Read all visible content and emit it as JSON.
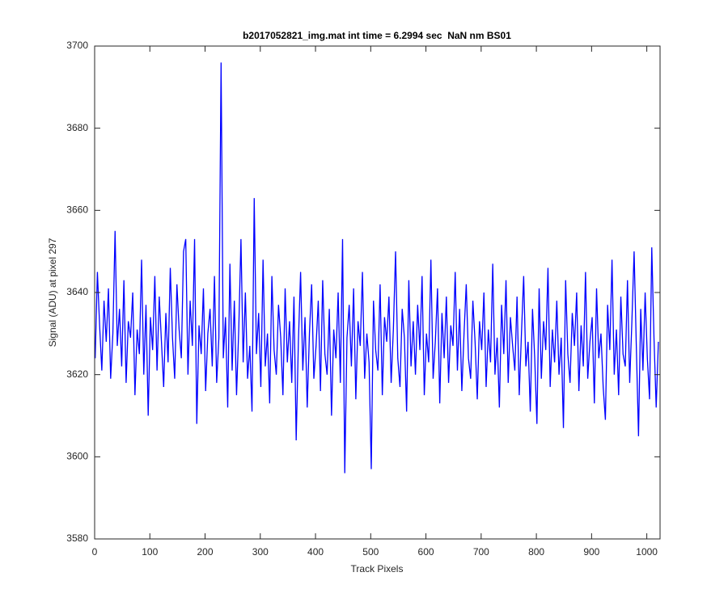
{
  "chart_data": {
    "type": "line",
    "title": "b2017052821_img.mat int time = 6.2994 sec  NaN nm BS01",
    "x_label": "Track Pixels",
    "y_label": "Signal (ADU) at pixel 297",
    "xlim": [
      0,
      1024
    ],
    "xticks": [
      0,
      100,
      200,
      300,
      400,
      500,
      600,
      700,
      800,
      900,
      1000
    ],
    "ylim": [
      3580,
      3700
    ],
    "yticks": [
      3580,
      3600,
      3620,
      3640,
      3660,
      3680,
      3700
    ],
    "x": [
      1,
      5,
      9,
      13,
      17,
      21,
      25,
      29,
      33,
      37,
      41,
      45,
      49,
      53,
      57,
      61,
      65,
      69,
      73,
      77,
      81,
      85,
      89,
      93,
      97,
      101,
      105,
      109,
      113,
      117,
      121,
      125,
      129,
      133,
      137,
      141,
      145,
      149,
      153,
      157,
      161,
      165,
      169,
      173,
      177,
      181,
      185,
      189,
      193,
      197,
      201,
      205,
      209,
      213,
      217,
      221,
      225,
      229,
      233,
      237,
      241,
      245,
      249,
      253,
      257,
      261,
      265,
      269,
      273,
      277,
      281,
      285,
      289,
      293,
      297,
      301,
      305,
      309,
      313,
      317,
      321,
      325,
      329,
      333,
      337,
      341,
      345,
      349,
      353,
      357,
      361,
      365,
      369,
      373,
      377,
      381,
      385,
      389,
      393,
      397,
      401,
      405,
      409,
      413,
      417,
      421,
      425,
      429,
      433,
      437,
      441,
      445,
      449,
      453,
      457,
      461,
      465,
      469,
      473,
      477,
      481,
      485,
      489,
      493,
      497,
      501,
      505,
      509,
      513,
      517,
      521,
      525,
      529,
      533,
      537,
      541,
      545,
      549,
      553,
      557,
      561,
      565,
      569,
      573,
      577,
      581,
      585,
      589,
      593,
      597,
      601,
      605,
      609,
      613,
      617,
      621,
      625,
      629,
      633,
      637,
      641,
      645,
      649,
      653,
      657,
      661,
      665,
      669,
      673,
      677,
      681,
      685,
      689,
      693,
      697,
      701,
      705,
      709,
      713,
      717,
      721,
      725,
      729,
      733,
      737,
      741,
      745,
      749,
      753,
      757,
      761,
      765,
      769,
      773,
      777,
      781,
      785,
      789,
      793,
      797,
      801,
      805,
      809,
      813,
      817,
      821,
      825,
      829,
      833,
      837,
      841,
      845,
      849,
      853,
      857,
      861,
      865,
      869,
      873,
      877,
      881,
      885,
      889,
      893,
      897,
      901,
      905,
      909,
      913,
      917,
      921,
      925,
      929,
      933,
      937,
      941,
      945,
      949,
      953,
      957,
      961,
      965,
      969,
      973,
      977,
      981,
      985,
      989,
      993,
      997,
      1001,
      1005,
      1009,
      1013,
      1017,
      1021
    ],
    "series": [
      {
        "color": "#0000ff",
        "values": [
          3624,
          3645,
          3632,
          3621,
          3638,
          3628,
          3641,
          3619,
          3630,
          3655,
          3627,
          3636,
          3622,
          3643,
          3618,
          3633,
          3629,
          3640,
          3615,
          3631,
          3625,
          3648,
          3620,
          3637,
          3610,
          3634,
          3626,
          3644,
          3621,
          3639,
          3628,
          3617,
          3635,
          3623,
          3646,
          3629,
          3619,
          3642,
          3631,
          3624,
          3650,
          3653,
          3620,
          3638,
          3627,
          3653,
          3608,
          3632,
          3625,
          3641,
          3616,
          3630,
          3636,
          3622,
          3644,
          3618,
          3629,
          3696,
          3624,
          3634,
          3612,
          3647,
          3621,
          3638,
          3615,
          3631,
          3653,
          3623,
          3640,
          3619,
          3627,
          3611,
          3663,
          3625,
          3635,
          3617,
          3648,
          3622,
          3630,
          3613,
          3644,
          3626,
          3620,
          3637,
          3629,
          3615,
          3641,
          3623,
          3633,
          3618,
          3639,
          3604,
          3628,
          3645,
          3621,
          3634,
          3612,
          3630,
          3642,
          3619,
          3627,
          3638,
          3616,
          3643,
          3625,
          3620,
          3636,
          3610,
          3631,
          3624,
          3640,
          3618,
          3653,
          3596,
          3629,
          3637,
          3622,
          3641,
          3614,
          3633,
          3627,
          3645,
          3619,
          3630,
          3623,
          3597,
          3638,
          3626,
          3621,
          3642,
          3615,
          3634,
          3628,
          3639,
          3618,
          3631,
          3650,
          3624,
          3617,
          3636,
          3629,
          3611,
          3643,
          3622,
          3633,
          3620,
          3637,
          3626,
          3644,
          3615,
          3630,
          3623,
          3648,
          3619,
          3628,
          3641,
          3613,
          3635,
          3624,
          3639,
          3618,
          3632,
          3627,
          3645,
          3621,
          3636,
          3616,
          3630,
          3642,
          3624,
          3619,
          3638,
          3628,
          3614,
          3633,
          3626,
          3640,
          3617,
          3631,
          3623,
          3647,
          3620,
          3629,
          3612,
          3637,
          3625,
          3643,
          3618,
          3634,
          3627,
          3621,
          3639,
          3615,
          3630,
          3644,
          3622,
          3628,
          3611,
          3636,
          3624,
          3608,
          3641,
          3619,
          3633,
          3626,
          3646,
          3617,
          3631,
          3623,
          3638,
          3620,
          3629,
          3607,
          3643,
          3625,
          3618,
          3635,
          3627,
          3640,
          3616,
          3632,
          3622,
          3645,
          3619,
          3628,
          3634,
          3613,
          3641,
          3624,
          3630,
          3617,
          3609,
          3637,
          3626,
          3648,
          3620,
          3631,
          3615,
          3639,
          3625,
          3622,
          3643,
          3618,
          3633,
          3650,
          3627,
          3605,
          3636,
          3621,
          3640,
          3624,
          3614,
          3651,
          3629,
          3612,
          3628
        ]
      }
    ]
  }
}
